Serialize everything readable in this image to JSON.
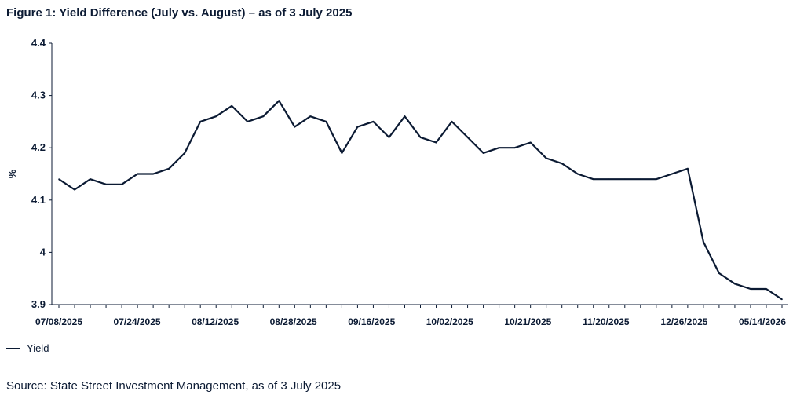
{
  "title": "Figure 1: Yield Difference (July vs. August) – as of 3 July 2025",
  "source": "Source: State Street Investment Management, as of 3 July 2025",
  "colors": {
    "line": "#0b1a33",
    "axis": "#0b1a33"
  },
  "chart_data": {
    "type": "line",
    "ylabel": "%",
    "xlabel": "",
    "ylim": [
      3.9,
      4.4
    ],
    "yticks": [
      "3.9",
      "4",
      "4.1",
      "4.2",
      "4.3",
      "4.4"
    ],
    "x_tick_labels": [
      "07/08/2025",
      "07/24/2025",
      "08/12/2025",
      "08/28/2025",
      "09/16/2025",
      "10/02/2025",
      "10/21/2025",
      "11/20/2025",
      "12/26/2025",
      "05/14/2026"
    ],
    "legend": {
      "position": "bottom-left",
      "entries": [
        "Yield"
      ]
    },
    "grid": false,
    "series": [
      {
        "name": "Yield",
        "values": [
          4.14,
          4.12,
          4.14,
          4.13,
          4.13,
          4.15,
          4.15,
          4.16,
          4.19,
          4.25,
          4.26,
          4.28,
          4.25,
          4.26,
          4.29,
          4.24,
          4.26,
          4.25,
          4.19,
          4.24,
          4.25,
          4.22,
          4.26,
          4.22,
          4.21,
          4.25,
          4.22,
          4.19,
          4.2,
          4.2,
          4.21,
          4.18,
          4.17,
          4.15,
          4.14,
          4.14,
          4.14,
          4.14,
          4.14,
          4.15,
          4.16,
          4.02,
          3.96,
          3.94,
          3.93,
          3.93,
          3.91
        ]
      }
    ]
  }
}
